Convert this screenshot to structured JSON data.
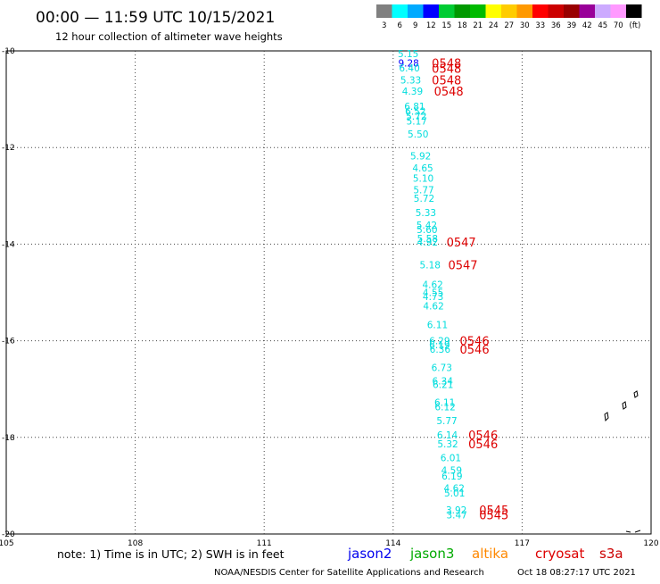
{
  "header": {
    "title": "00:00 — 11:59 UTC 10/15/2021",
    "subtitle": "12 hour collection of altimeter wave heights"
  },
  "colorbar": {
    "unit": "(ft)",
    "bins": [
      {
        "label": "3",
        "color": "#808080"
      },
      {
        "label": "6",
        "color": "#00ffff"
      },
      {
        "label": "9",
        "color": "#00aaff"
      },
      {
        "label": "12",
        "color": "#0000ff"
      },
      {
        "label": "15",
        "color": "#00cc33"
      },
      {
        "label": "18",
        "color": "#009900"
      },
      {
        "label": "21",
        "color": "#00bb00"
      },
      {
        "label": "24",
        "color": "#ffff00"
      },
      {
        "label": "27",
        "color": "#ffcc00"
      },
      {
        "label": "30",
        "color": "#ff9900"
      },
      {
        "label": "33",
        "color": "#ff0000"
      },
      {
        "label": "36",
        "color": "#cc0000"
      },
      {
        "label": "39",
        "color": "#990000"
      },
      {
        "label": "42",
        "color": "#990099"
      },
      {
        "label": "45",
        "color": "#ccaaff"
      },
      {
        "label": "70",
        "color": "#ff99ff"
      },
      {
        "label": "",
        "color": "#000000"
      }
    ]
  },
  "chart_data": {
    "type": "scatter",
    "x_range": [
      105,
      120
    ],
    "y_range": [
      -20,
      -10
    ],
    "x_ticks": [
      105,
      108,
      111,
      114,
      117,
      120
    ],
    "y_ticks": [
      -10,
      -12,
      -14,
      -16,
      -18,
      -20
    ],
    "x_tick_labels": [
      "105",
      "108",
      "111",
      "114",
      "117",
      "120"
    ],
    "y_tick_labels": [
      "-10",
      "-12",
      "-14",
      "-16",
      "-18",
      "-20"
    ],
    "grid": "dotted",
    "observations": [
      {
        "lon": 114.35,
        "lat": -10.06,
        "label": "5.15",
        "color": "#00dddd"
      },
      {
        "lon": 114.36,
        "lat": -10.25,
        "label": "9.28",
        "color": "#0000ff"
      },
      {
        "lon": 114.38,
        "lat": -10.35,
        "label": "6.40",
        "color": "#00dddd"
      },
      {
        "lon": 114.41,
        "lat": -10.6,
        "label": "5.33",
        "color": "#00dddd"
      },
      {
        "lon": 114.45,
        "lat": -10.83,
        "label": "4.39",
        "color": "#00dddd"
      },
      {
        "lon": 114.5,
        "lat": -11.15,
        "label": "6.81",
        "color": "#00dddd"
      },
      {
        "lon": 114.52,
        "lat": -11.25,
        "label": "6.52",
        "color": "#00dddd"
      },
      {
        "lon": 114.54,
        "lat": -11.35,
        "label": "5.72",
        "color": "#00dddd"
      },
      {
        "lon": 114.55,
        "lat": -11.45,
        "label": "5.17",
        "color": "#00dddd"
      },
      {
        "lon": 114.58,
        "lat": -11.72,
        "label": "5.50",
        "color": "#00dddd"
      },
      {
        "lon": 114.64,
        "lat": -12.17,
        "label": "5.92",
        "color": "#00dddd"
      },
      {
        "lon": 114.69,
        "lat": -12.42,
        "label": "4.65",
        "color": "#00dddd"
      },
      {
        "lon": 114.7,
        "lat": -12.63,
        "label": "5.10",
        "color": "#00dddd"
      },
      {
        "lon": 114.71,
        "lat": -12.87,
        "label": "5.77",
        "color": "#00dddd"
      },
      {
        "lon": 114.72,
        "lat": -13.05,
        "label": "5.72",
        "color": "#00dddd"
      },
      {
        "lon": 114.76,
        "lat": -13.35,
        "label": "5.33",
        "color": "#00dddd"
      },
      {
        "lon": 114.78,
        "lat": -13.6,
        "label": "5.42",
        "color": "#00dddd"
      },
      {
        "lon": 114.79,
        "lat": -13.7,
        "label": "5.60",
        "color": "#00dddd"
      },
      {
        "lon": 114.8,
        "lat": -13.88,
        "label": "5.58",
        "color": "#00dddd"
      },
      {
        "lon": 114.8,
        "lat": -13.96,
        "label": "4.92",
        "color": "#00dddd"
      },
      {
        "lon": 114.86,
        "lat": -14.43,
        "label": "5.18",
        "color": "#00dddd"
      },
      {
        "lon": 114.92,
        "lat": -14.83,
        "label": "4.62",
        "color": "#00dddd"
      },
      {
        "lon": 114.93,
        "lat": -15.0,
        "label": "4.55",
        "color": "#00dddd"
      },
      {
        "lon": 114.93,
        "lat": -15.08,
        "label": "4.73",
        "color": "#00dddd"
      },
      {
        "lon": 114.94,
        "lat": -15.28,
        "label": "4.62",
        "color": "#00dddd"
      },
      {
        "lon": 115.03,
        "lat": -15.67,
        "label": "6.11",
        "color": "#00dddd"
      },
      {
        "lon": 115.08,
        "lat": -16.0,
        "label": "6.29",
        "color": "#00dddd"
      },
      {
        "lon": 115.08,
        "lat": -16.08,
        "label": "6.19",
        "color": "#00dddd"
      },
      {
        "lon": 115.09,
        "lat": -16.17,
        "label": "6.36",
        "color": "#00dddd"
      },
      {
        "lon": 115.13,
        "lat": -16.55,
        "label": "6.73",
        "color": "#00dddd"
      },
      {
        "lon": 115.15,
        "lat": -16.83,
        "label": "6.34",
        "color": "#00dddd"
      },
      {
        "lon": 115.16,
        "lat": -16.9,
        "label": "6.21",
        "color": "#00dddd"
      },
      {
        "lon": 115.2,
        "lat": -17.27,
        "label": "6.11",
        "color": "#00dddd"
      },
      {
        "lon": 115.21,
        "lat": -17.37,
        "label": "6.12",
        "color": "#00dddd"
      },
      {
        "lon": 115.25,
        "lat": -17.65,
        "label": "5.77",
        "color": "#00dddd"
      },
      {
        "lon": 115.26,
        "lat": -17.95,
        "label": "6.14",
        "color": "#00dddd"
      },
      {
        "lon": 115.27,
        "lat": -18.13,
        "label": "5.32",
        "color": "#00dddd"
      },
      {
        "lon": 115.34,
        "lat": -18.42,
        "label": "6.01",
        "color": "#00dddd"
      },
      {
        "lon": 115.36,
        "lat": -18.68,
        "label": "4.59",
        "color": "#00dddd"
      },
      {
        "lon": 115.37,
        "lat": -18.8,
        "label": "6.19",
        "color": "#00dddd"
      },
      {
        "lon": 115.42,
        "lat": -19.05,
        "label": "4.62",
        "color": "#00dddd"
      },
      {
        "lon": 115.43,
        "lat": -19.15,
        "label": "5.01",
        "color": "#00dddd"
      },
      {
        "lon": 115.47,
        "lat": -19.5,
        "label": "3.92",
        "color": "#00dddd"
      },
      {
        "lon": 115.48,
        "lat": -19.6,
        "label": "3.47",
        "color": "#00dddd"
      }
    ],
    "pass_labels": [
      {
        "lon": 114.9,
        "lat": -10.25,
        "label": "0548"
      },
      {
        "lon": 114.9,
        "lat": -10.36,
        "label": "0548"
      },
      {
        "lon": 114.9,
        "lat": -10.6,
        "label": "0548"
      },
      {
        "lon": 114.95,
        "lat": -10.83,
        "label": "0548"
      },
      {
        "lon": 115.24,
        "lat": -13.96,
        "label": "0547"
      },
      {
        "lon": 115.28,
        "lat": -14.43,
        "label": "0547"
      },
      {
        "lon": 115.55,
        "lat": -16.0,
        "label": "0546"
      },
      {
        "lon": 115.55,
        "lat": -16.17,
        "label": "0546"
      },
      {
        "lon": 115.75,
        "lat": -17.95,
        "label": "0546"
      },
      {
        "lon": 115.75,
        "lat": -18.13,
        "label": "0546"
      },
      {
        "lon": 116.0,
        "lat": -19.5,
        "label": "0545"
      },
      {
        "lon": 116.0,
        "lat": -19.6,
        "label": "0545"
      }
    ]
  },
  "footer": {
    "note": "note:  1) Time is in UTC;  2) SWH is in feet",
    "satellites": [
      {
        "label": "jason2",
        "color": "#0000ee"
      },
      {
        "label": "jason3",
        "color": "#00aa00"
      },
      {
        "label": "altika",
        "color": "#ff8800"
      },
      {
        "label": "cryosat",
        "color": "#dd0000"
      },
      {
        "label": "s3a",
        "color": "#cc0000"
      }
    ],
    "credit": "NOAA/NESDIS Center for Satellite Applications and Research",
    "timestamp": "Oct 18 08:27:17 UTC 2021"
  }
}
